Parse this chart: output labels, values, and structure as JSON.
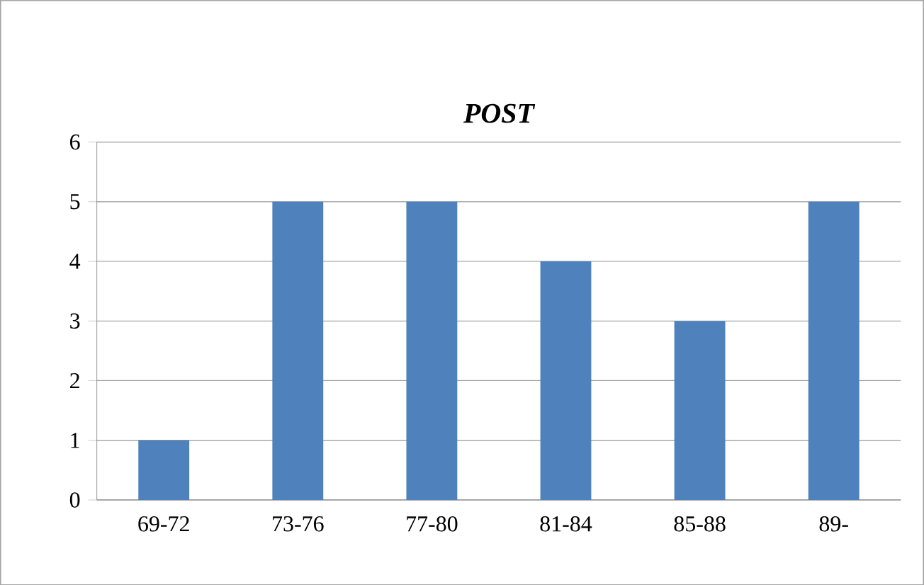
{
  "chart_data": {
    "type": "bar",
    "title": "POST",
    "categories": [
      "69-72",
      "73-76",
      "77-80",
      "81-84",
      "85-88",
      "89-"
    ],
    "values": [
      1,
      5,
      5,
      4,
      3,
      5
    ],
    "color": "#4f81bd",
    "ylim": [
      0,
      6
    ],
    "yticks": [
      0,
      1,
      2,
      3,
      4,
      5,
      6
    ],
    "grid": "y"
  }
}
